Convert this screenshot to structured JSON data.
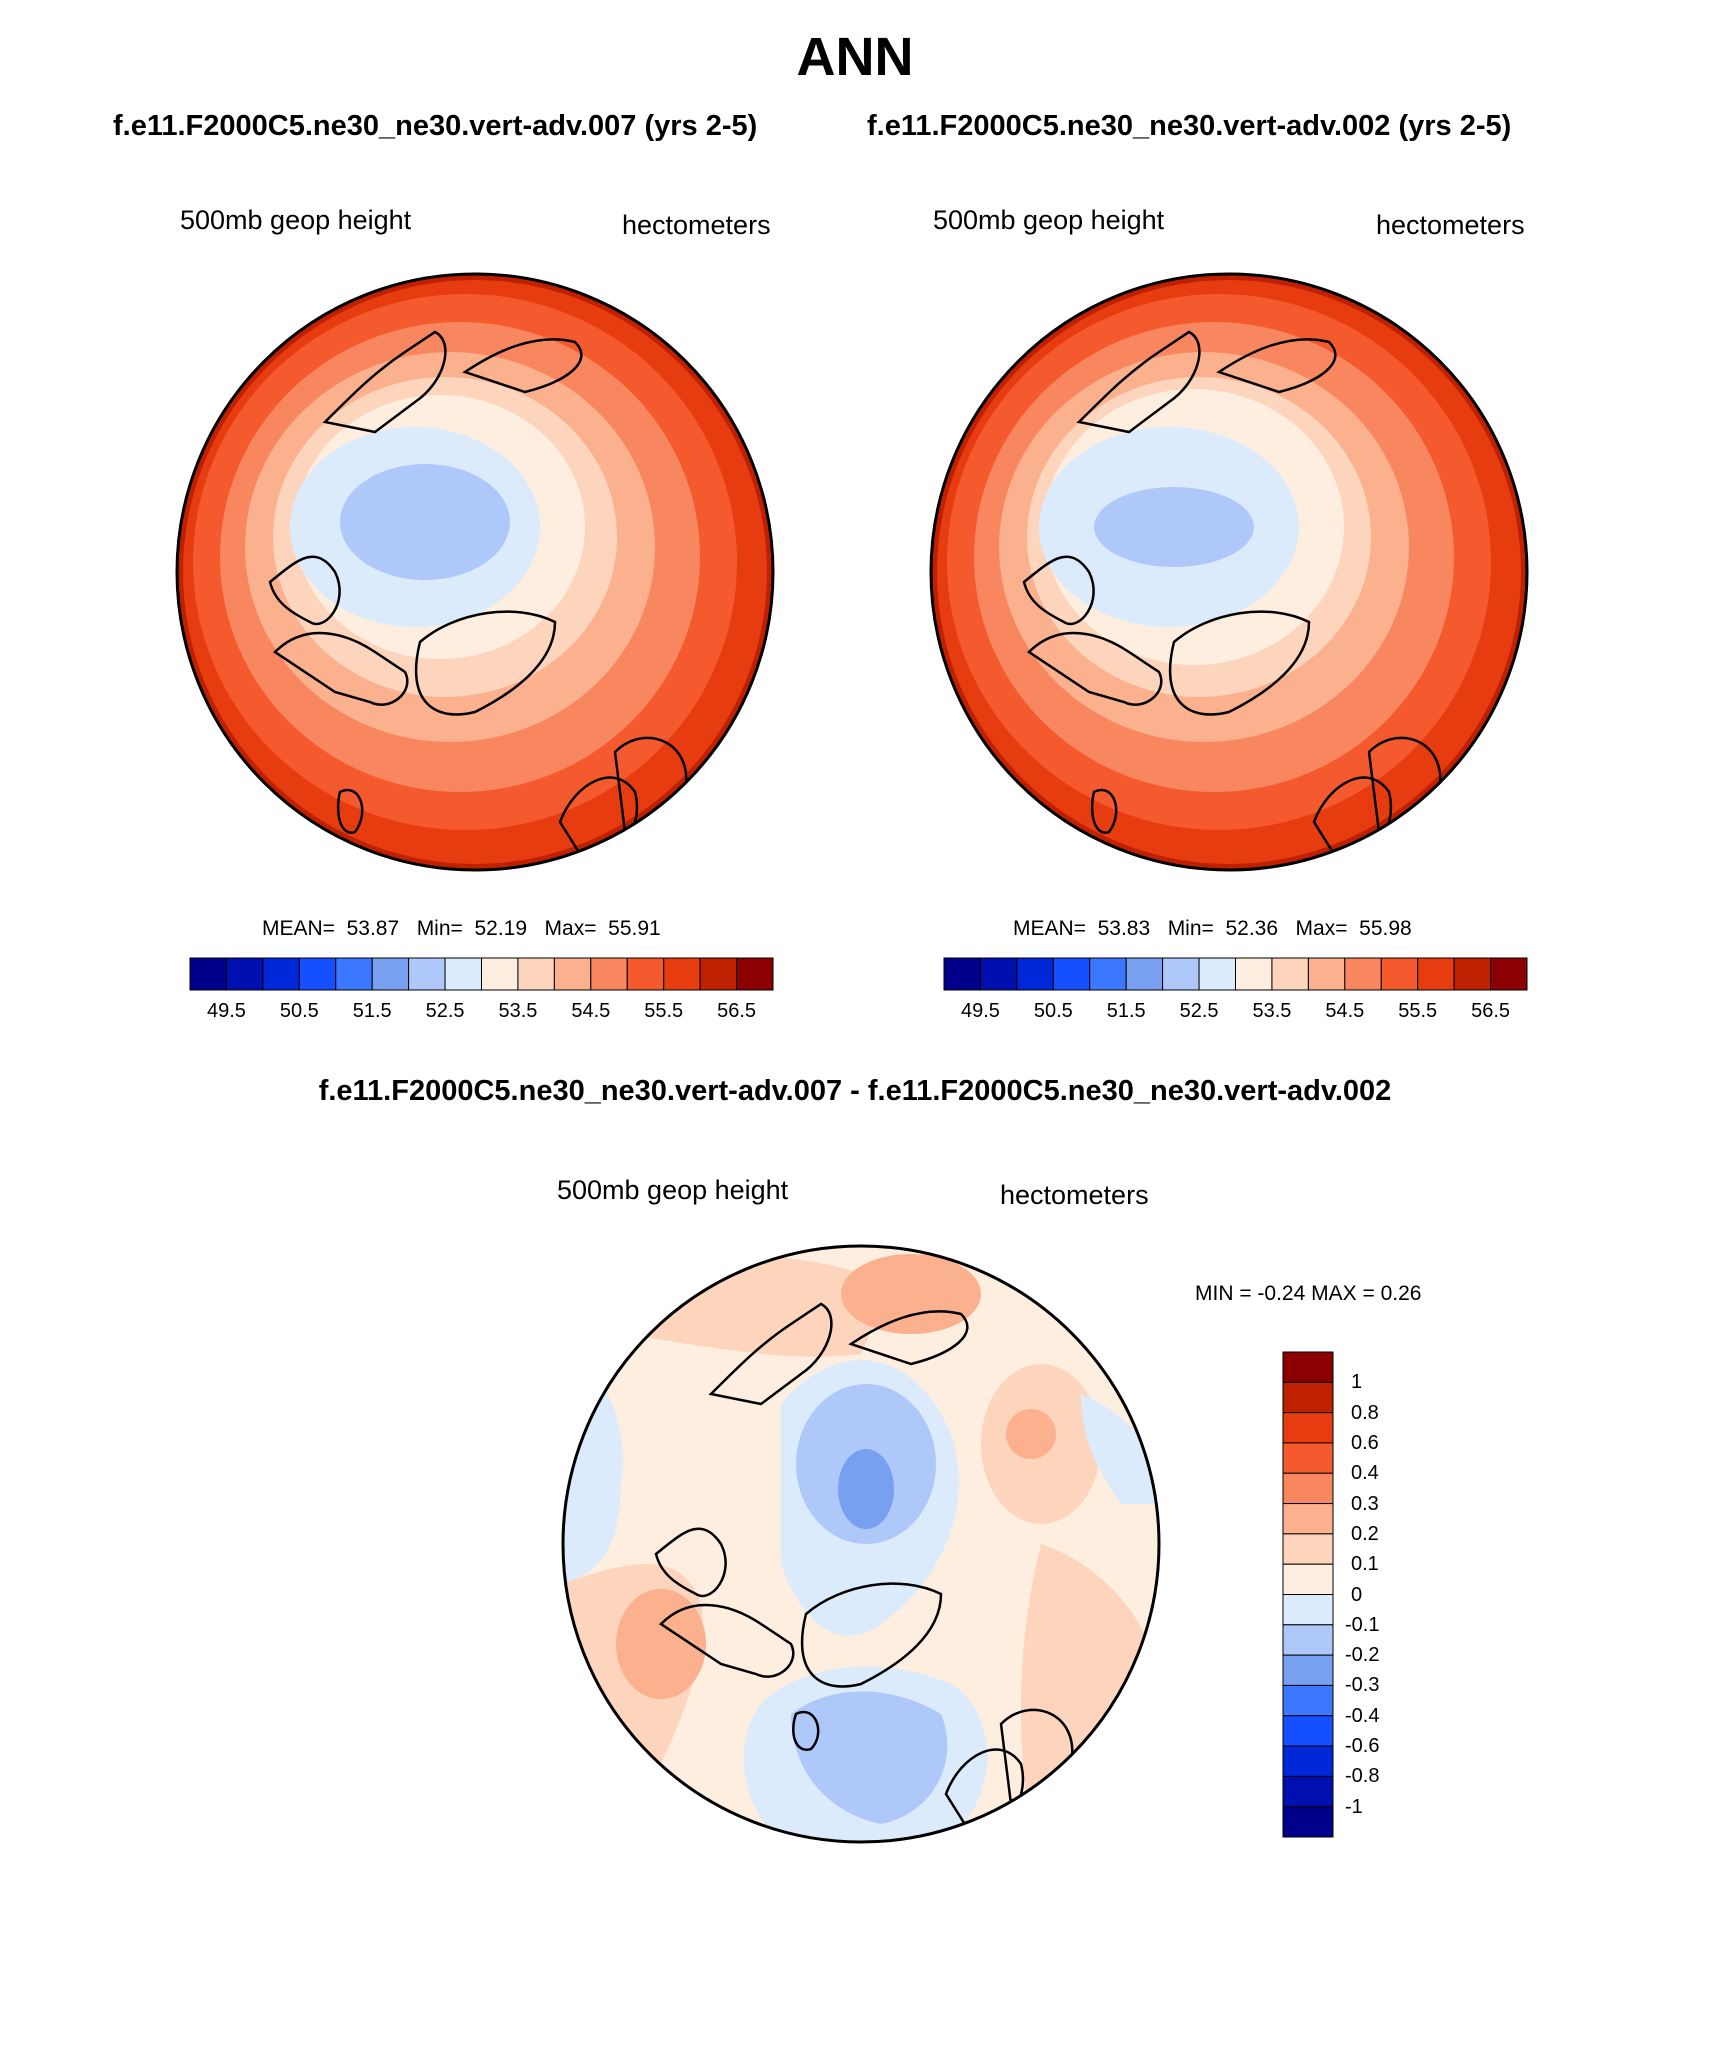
{
  "title": "ANN",
  "panels": [
    {
      "case": "f.e11.F2000C5.ne30_ne30.vert-adv.007 (yrs 2-5)",
      "left_label": "500mb geop height",
      "right_label": "hectometers",
      "stats": {
        "mean_label": "MEAN=",
        "mean": "53.87",
        "min_label": "Min=",
        "min": "52.19",
        "max_label": "Max=",
        "max": "55.91"
      }
    },
    {
      "case": "f.e11.F2000C5.ne30_ne30.vert-adv.002 (yrs 2-5)",
      "left_label": "500mb geop height",
      "right_label": "hectometers",
      "stats": {
        "mean_label": "MEAN=",
        "mean": "53.83",
        "min_label": "Min=",
        "min": "52.36",
        "max_label": "Max=",
        "max": "55.98"
      }
    }
  ],
  "difference": {
    "title": "f.e11.F2000C5.ne30_ne30.vert-adv.007 - f.e11.F2000C5.ne30_ne30.vert-adv.002",
    "left_label": "500mb geop height",
    "right_label": "hectometers",
    "minmax": "MIN =  -0.24 MAX =   0.26"
  },
  "colorbar_main": {
    "colors": [
      "#00008b",
      "#0010b0",
      "#0028d8",
      "#1450ff",
      "#3c78ff",
      "#78a0f0",
      "#afc8fa",
      "#dcebfc",
      "#fdeee0",
      "#fdd4bc",
      "#fbb08e",
      "#f8875f",
      "#f45a2d",
      "#e63c0f",
      "#be2000",
      "#8b0000"
    ],
    "tick_labels": [
      "49.5",
      "50.5",
      "51.5",
      "52.5",
      "53.5",
      "54.5",
      "55.5",
      "56.5"
    ]
  },
  "colorbar_diff": {
    "colors": [
      "#8b0000",
      "#be2000",
      "#e63c0f",
      "#f45a2d",
      "#f8875f",
      "#fbb08e",
      "#fdd4bc",
      "#fdeee0",
      "#dcebfc",
      "#afc8fa",
      "#78a0f0",
      "#3c78ff",
      "#1450ff",
      "#0028d8",
      "#0010b0",
      "#00008b"
    ],
    "tick_labels": [
      "1",
      "0.8",
      "0.6",
      "0.4",
      "0.3",
      "0.2",
      "0.1",
      "0",
      "-0.1",
      "-0.2",
      "-0.3",
      "-0.4",
      "-0.6",
      "-0.8",
      "-1"
    ]
  }
}
